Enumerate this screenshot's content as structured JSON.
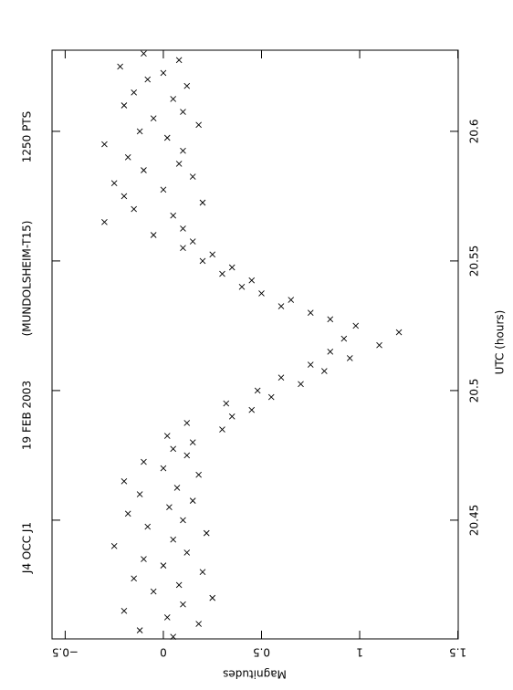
{
  "chart_data": {
    "type": "scatter",
    "title_items": [
      "J4 OCC J1",
      "19 FEB 2003",
      "(MUNDOLSHEIM-T15)",
      "1250 PTS"
    ],
    "x_label": "UTC (hours)",
    "y_label": "Magnitudes",
    "xlim": [
      20.4042,
      20.6313
    ],
    "xticks": [
      20.45,
      20.5,
      20.55,
      20.6
    ],
    "ylim": [
      -0.567,
      1.502
    ],
    "yticks": [
      {
        "value": -0.5,
        "label": "−0.5"
      },
      0,
      0.5,
      1,
      1.5
    ],
    "marker": "x",
    "color": "#000000",
    "x": [
      20.405,
      20.4075,
      20.41,
      20.4125,
      20.415,
      20.4175,
      20.42,
      20.4225,
      20.425,
      20.4275,
      20.43,
      20.4325,
      20.435,
      20.4375,
      20.44,
      20.4425,
      20.445,
      20.4475,
      20.45,
      20.4525,
      20.455,
      20.4575,
      20.46,
      20.4625,
      20.465,
      20.4675,
      20.47,
      20.4725,
      20.475,
      20.4775,
      20.48,
      20.4825,
      20.485,
      20.4875,
      20.49,
      20.4925,
      20.495,
      20.4975,
      20.5,
      20.5025,
      20.505,
      20.5075,
      20.51,
      20.5125,
      20.515,
      20.5175,
      20.52,
      20.5225,
      20.525,
      20.5275,
      20.53,
      20.5325,
      20.535,
      20.5375,
      20.54,
      20.5425,
      20.545,
      20.5475,
      20.55,
      20.5525,
      20.555,
      20.5575,
      20.56,
      20.5625,
      20.565,
      20.5675,
      20.57,
      20.5725,
      20.575,
      20.5775,
      20.58,
      20.5825,
      20.585,
      20.5875,
      20.59,
      20.5925,
      20.595,
      20.5975,
      20.6,
      20.6025,
      20.605,
      20.6075,
      20.61,
      20.6125,
      20.615,
      20.6175,
      20.62,
      20.6225,
      20.625,
      20.6275,
      20.63
    ],
    "values": [
      0.05,
      -0.12,
      0.18,
      0.02,
      -0.2,
      0.1,
      0.25,
      -0.05,
      0.08,
      -0.15,
      0.2,
      0.0,
      -0.1,
      0.12,
      -0.25,
      0.05,
      0.22,
      -0.08,
      0.1,
      -0.18,
      0.03,
      0.15,
      -0.12,
      0.07,
      -0.2,
      0.18,
      0.0,
      -0.1,
      0.12,
      0.05,
      0.15,
      0.02,
      0.3,
      0.12,
      0.35,
      0.45,
      0.32,
      0.55,
      0.48,
      0.7,
      0.6,
      0.82,
      0.75,
      0.95,
      0.85,
      1.1,
      0.92,
      1.2,
      0.98,
      0.85,
      0.75,
      0.6,
      0.65,
      0.5,
      0.4,
      0.45,
      0.3,
      0.35,
      0.2,
      0.25,
      0.1,
      0.15,
      -0.05,
      0.1,
      -0.3,
      0.05,
      -0.15,
      0.2,
      -0.2,
      0.0,
      -0.25,
      0.15,
      -0.1,
      0.08,
      -0.18,
      0.1,
      -0.3,
      0.02,
      -0.12,
      0.18,
      -0.05,
      0.1,
      -0.2,
      0.05,
      -0.15,
      0.12,
      -0.08,
      0.0,
      -0.22,
      0.08,
      -0.1
    ]
  }
}
